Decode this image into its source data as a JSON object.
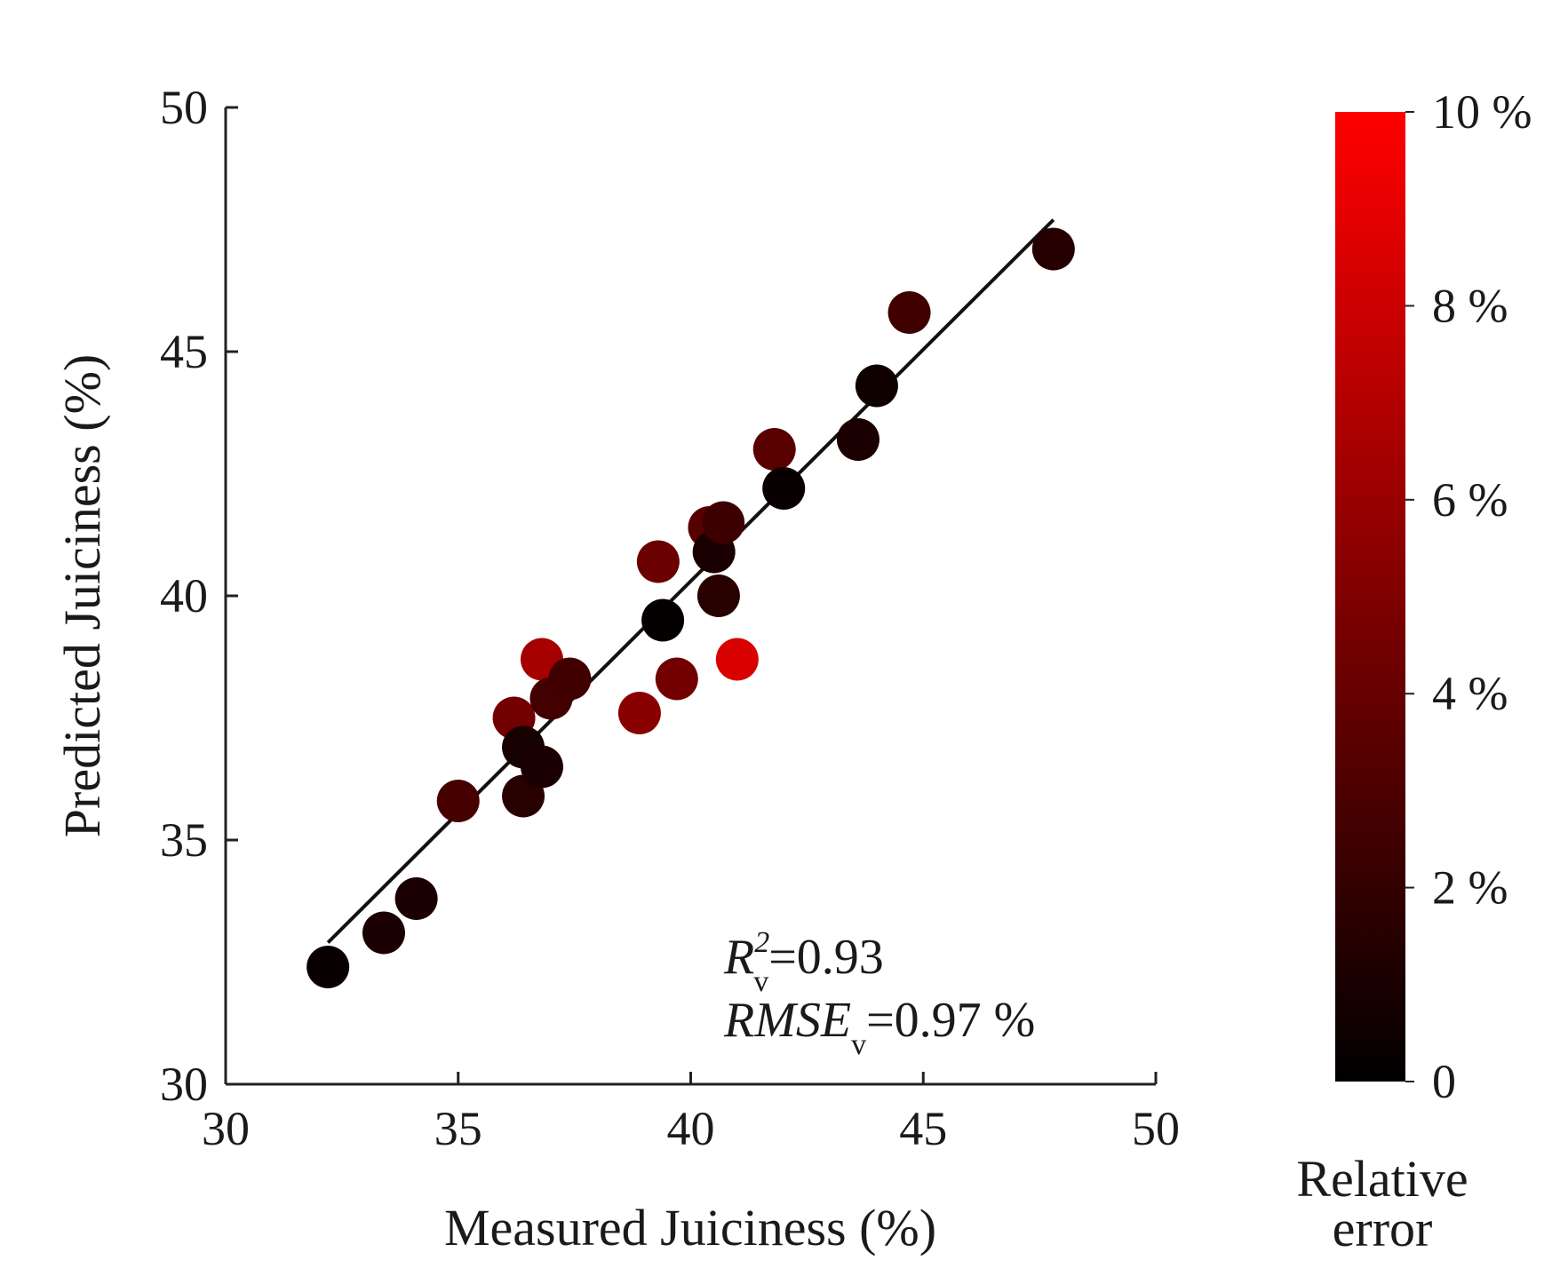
{
  "chart_data": {
    "type": "scatter",
    "xlabel": "Measured Juiciness (%)",
    "ylabel": "Predicted Juiciness (%)",
    "xlim": [
      30,
      50
    ],
    "ylim": [
      30,
      50
    ],
    "x_ticks": [
      "30",
      "35",
      "40",
      "45",
      "50"
    ],
    "y_ticks": [
      "30",
      "35",
      "40",
      "45",
      "50"
    ],
    "fit_line": {
      "x": [
        32.2,
        47.8
      ],
      "y": [
        32.9,
        47.7
      ]
    },
    "points": [
      {
        "x": 32.2,
        "y": 32.4,
        "error": 0.3
      },
      {
        "x": 33.4,
        "y": 33.1,
        "error": 1.0
      },
      {
        "x": 34.1,
        "y": 33.8,
        "error": 1.0
      },
      {
        "x": 35.0,
        "y": 35.8,
        "error": 2.8
      },
      {
        "x": 36.2,
        "y": 37.5,
        "error": 4.5
      },
      {
        "x": 36.4,
        "y": 35.9,
        "error": 1.6
      },
      {
        "x": 36.4,
        "y": 36.9,
        "error": 0.9
      },
      {
        "x": 36.8,
        "y": 36.5,
        "error": 1.0
      },
      {
        "x": 36.8,
        "y": 38.7,
        "error": 6.5
      },
      {
        "x": 37.0,
        "y": 37.9,
        "error": 2.6
      },
      {
        "x": 37.4,
        "y": 38.3,
        "error": 2.5
      },
      {
        "x": 38.9,
        "y": 37.6,
        "error": 5.4
      },
      {
        "x": 39.3,
        "y": 40.7,
        "error": 4.2
      },
      {
        "x": 39.4,
        "y": 39.5,
        "error": 0.2
      },
      {
        "x": 39.7,
        "y": 38.3,
        "error": 4.5
      },
      {
        "x": 40.4,
        "y": 41.4,
        "error": 3.4
      },
      {
        "x": 40.5,
        "y": 40.9,
        "error": 1.0
      },
      {
        "x": 40.7,
        "y": 41.5,
        "error": 2.4
      },
      {
        "x": 40.6,
        "y": 40.0,
        "error": 1.6
      },
      {
        "x": 41.0,
        "y": 38.7,
        "error": 8.5
      },
      {
        "x": 41.8,
        "y": 43.0,
        "error": 3.5
      },
      {
        "x": 42.0,
        "y": 42.2,
        "error": 0.3
      },
      {
        "x": 43.6,
        "y": 43.2,
        "error": 1.0
      },
      {
        "x": 44.0,
        "y": 44.3,
        "error": 0.6
      },
      {
        "x": 44.7,
        "y": 45.8,
        "error": 2.5
      },
      {
        "x": 47.8,
        "y": 47.1,
        "error": 1.5
      }
    ],
    "annotations": {
      "r2_symbol": "R",
      "r2_sup": "2",
      "r2_sub": "v",
      "r2_value": "=0.93",
      "rmse_symbol": "RMSE",
      "rmse_sub": "v",
      "rmse_value": "=0.97 %"
    },
    "colorbar": {
      "title_line1": "Relative",
      "title_line2": "error",
      "range": [
        0,
        10
      ],
      "ticks": [
        {
          "value": 0,
          "label": "0"
        },
        {
          "value": 2,
          "label": "2 %"
        },
        {
          "value": 4,
          "label": "4 %"
        },
        {
          "value": 6,
          "label": "6 %"
        },
        {
          "value": 8,
          "label": "8 %"
        },
        {
          "value": 10,
          "label": "10 %"
        }
      ],
      "color_low": "#000000",
      "color_high": "#ff0000"
    }
  }
}
